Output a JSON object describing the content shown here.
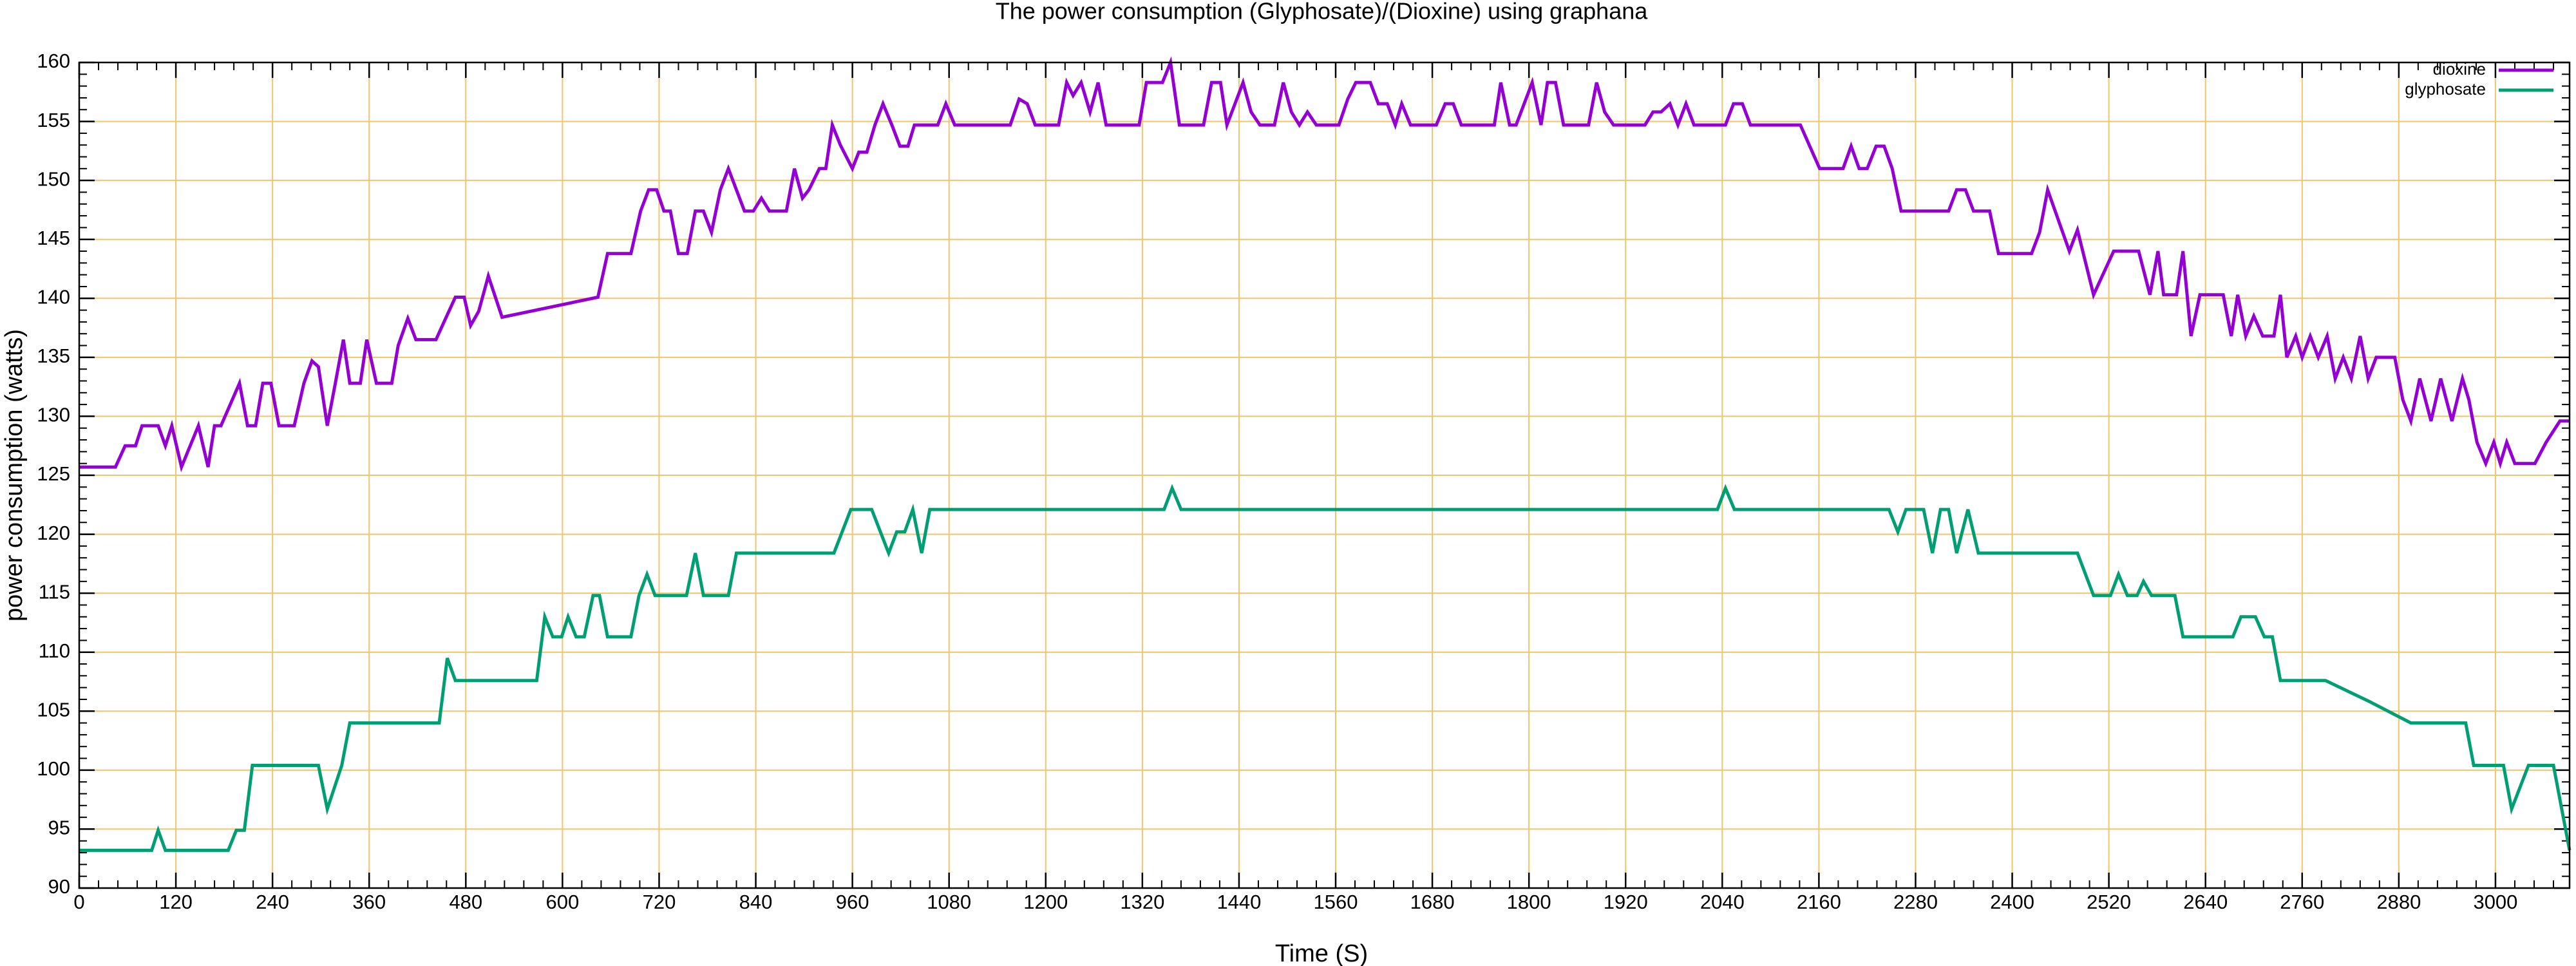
{
  "chart_data": {
    "type": "line",
    "title": "The power consumption (Glyphosate)/(Dioxine) using graphana",
    "x_label": "Time (S)",
    "y_label": "power consumption (watts)",
    "xlim": [
      0,
      3092
    ],
    "ylim": [
      90,
      160
    ],
    "xticks": [
      0,
      120,
      240,
      360,
      480,
      600,
      720,
      840,
      960,
      1080,
      1200,
      1320,
      1440,
      1560,
      1680,
      1800,
      1920,
      2040,
      2160,
      2280,
      2400,
      2520,
      2640,
      2760,
      2880,
      3000
    ],
    "yticks": [
      90,
      95,
      100,
      105,
      110,
      115,
      120,
      125,
      130,
      135,
      140,
      145,
      150,
      155,
      160
    ],
    "minor_ticks": 5,
    "grid": true,
    "grid_color": "#f3c46e",
    "legend": "top-right",
    "series": [
      {
        "name": "dioxine",
        "color": "#9400d3",
        "x": [
          0,
          45,
          57,
          70,
          78,
          98,
          107,
          115,
          127,
          148,
          160,
          168,
          176,
          199,
          209,
          219,
          228,
          238,
          248,
          267,
          279,
          289,
          297,
          308,
          318,
          328,
          336,
          349,
          357,
          369,
          388,
          396,
          408,
          418,
          443,
          455,
          467,
          478,
          486,
          496,
          508,
          525,
          644,
          656,
          685,
          697,
          707,
          717,
          726,
          734,
          744,
          755,
          765,
          775,
          785,
          796,
          806,
          816,
          826,
          837,
          847,
          857,
          878,
          888,
          898,
          906,
          919,
          927,
          935,
          945,
          960,
          968,
          978,
          988,
          998,
          1009,
          1019,
          1029,
          1037,
          1066,
          1076,
          1087,
          1156,
          1167,
          1177,
          1187,
          1216,
          1226,
          1234,
          1244,
          1255,
          1265,
          1275,
          1316,
          1325,
          1345,
          1355,
          1366,
          1396,
          1406,
          1417,
          1425,
          1445,
          1455,
          1466,
          1484,
          1495,
          1505,
          1515,
          1525,
          1536,
          1564,
          1575,
          1585,
          1603,
          1613,
          1624,
          1634,
          1642,
          1653,
          1685,
          1696,
          1706,
          1716,
          1757,
          1765,
          1776,
          1784,
          1794,
          1804,
          1815,
          1823,
          1833,
          1843,
          1874,
          1884,
          1894,
          1905,
          1944,
          1954,
          1964,
          1975,
          1985,
          1995,
          2005,
          2044,
          2054,
          2065,
          2075,
          2137,
          2161,
          2190,
          2200,
          2210,
          2220,
          2231,
          2241,
          2251,
          2262,
          2321,
          2331,
          2342,
          2352,
          2372,
          2383,
          2424,
          2434,
          2444,
          2471,
          2481,
          2501,
          2526,
          2557,
          2571,
          2581,
          2588,
          2604,
          2612,
          2622,
          2633,
          2662,
          2672,
          2680,
          2690,
          2700,
          2711,
          2725,
          2733,
          2741,
          2752,
          2760,
          2770,
          2780,
          2791,
          2801,
          2811,
          2821,
          2832,
          2842,
          2852,
          2875,
          2885,
          2895,
          2906,
          2920,
          2932,
          2946,
          2959,
          2967,
          2977,
          2988,
          2998,
          3006,
          3014,
          3024,
          3049,
          3063,
          3080,
          3092
        ],
        "values": [
          125.7,
          125.7,
          127.5,
          127.5,
          129.2,
          129.2,
          127.5,
          129.2,
          125.7,
          129.2,
          125.7,
          129.2,
          129.2,
          132.8,
          129.2,
          129.2,
          132.8,
          132.8,
          129.2,
          129.2,
          132.8,
          134.7,
          134.2,
          129.2,
          132.8,
          136.5,
          132.8,
          132.8,
          136.5,
          132.8,
          132.8,
          136,
          138.3,
          136.5,
          136.5,
          138.3,
          140.1,
          140.1,
          137.7,
          138.9,
          141.9,
          138.4,
          140.1,
          143.8,
          143.8,
          147.4,
          149.2,
          149.2,
          147.4,
          147.4,
          143.8,
          143.8,
          147.4,
          147.4,
          145.6,
          149.2,
          151,
          149.2,
          147.4,
          147.4,
          148.5,
          147.4,
          147.4,
          151,
          148.5,
          149.2,
          151,
          151,
          154.7,
          153,
          151,
          152.4,
          152.4,
          154.7,
          156.5,
          154.7,
          152.9,
          152.9,
          154.7,
          154.7,
          156.5,
          154.7,
          154.7,
          156.9,
          156.5,
          154.7,
          154.7,
          158.3,
          157.2,
          158.3,
          155.8,
          158.3,
          154.7,
          154.7,
          158.3,
          158.3,
          160,
          154.7,
          154.7,
          158.3,
          158.3,
          154.7,
          158.3,
          155.8,
          154.7,
          154.7,
          158.3,
          155.8,
          154.7,
          155.8,
          154.7,
          154.7,
          156.9,
          158.3,
          158.3,
          156.5,
          156.5,
          154.7,
          156.5,
          154.7,
          154.7,
          156.5,
          156.5,
          154.7,
          154.7,
          158.3,
          154.7,
          154.7,
          156.5,
          158.3,
          154.7,
          158.3,
          158.3,
          154.7,
          154.7,
          158.3,
          155.8,
          154.7,
          154.7,
          155.8,
          155.8,
          156.5,
          154.7,
          156.5,
          154.7,
          154.7,
          156.5,
          156.5,
          154.7,
          154.7,
          151,
          151,
          152.9,
          151,
          151,
          152.9,
          152.9,
          151,
          147.4,
          147.4,
          149.2,
          149.2,
          147.4,
          147.4,
          143.8,
          143.8,
          145.6,
          149.2,
          144,
          145.8,
          140.3,
          144,
          144,
          140.3,
          144,
          140.3,
          140.3,
          144,
          136.8,
          140.3,
          140.3,
          136.8,
          140.3,
          136.8,
          138.5,
          136.8,
          136.8,
          140.3,
          135,
          136.8,
          135,
          136.8,
          135,
          136.8,
          133.2,
          135,
          133.2,
          136.8,
          133.2,
          135,
          135,
          131.4,
          129.6,
          133.2,
          129.6,
          133.2,
          129.6,
          133.2,
          131.4,
          127.8,
          126,
          127.8,
          126,
          127.8,
          126,
          126,
          127.8,
          129.6,
          129.6
        ]
      },
      {
        "name": "glyphosate",
        "color": "#009e73",
        "x": [
          0,
          90,
          98,
          107,
          185,
          195,
          205,
          215,
          297,
          308,
          326,
          336,
          447,
          457,
          467,
          568,
          578,
          588,
          599,
          607,
          617,
          627,
          638,
          646,
          656,
          685,
          695,
          705,
          715,
          754,
          765,
          775,
          806,
          816,
          937,
          958,
          984,
          1005,
          1015,
          1025,
          1035,
          1046,
          1056,
          1347,
          1357,
          1368,
          2034,
          2044,
          2055,
          2247,
          2258,
          2268,
          2290,
          2301,
          2311,
          2321,
          2331,
          2345,
          2358,
          2481,
          2501,
          2522,
          2532,
          2543,
          2555,
          2563,
          2573,
          2602,
          2612,
          2674,
          2684,
          2702,
          2713,
          2723,
          2733,
          2789,
          2844,
          2895,
          2963,
          2973,
          3010,
          3020,
          3041,
          3072,
          3092
        ],
        "values": [
          93.2,
          93.2,
          94.9,
          93.2,
          93.2,
          94.9,
          94.9,
          100.4,
          100.4,
          96.7,
          100.4,
          104,
          104,
          109.5,
          107.6,
          107.6,
          113,
          111.3,
          111.3,
          113,
          111.3,
          111.3,
          114.8,
          114.8,
          111.3,
          111.3,
          114.8,
          116.6,
          114.8,
          114.8,
          118.4,
          114.8,
          114.8,
          118.4,
          118.4,
          122.1,
          122.1,
          118.4,
          120.2,
          120.2,
          122.1,
          118.4,
          122.1,
          122.1,
          123.9,
          122.1,
          122.1,
          123.9,
          122.1,
          122.1,
          120.2,
          122.1,
          122.1,
          118.4,
          122.1,
          122.1,
          118.4,
          122.1,
          118.4,
          118.4,
          114.8,
          114.8,
          116.6,
          114.8,
          114.8,
          116,
          114.8,
          114.8,
          111.3,
          111.3,
          113,
          113,
          111.3,
          111.3,
          107.6,
          107.6,
          105.8,
          104,
          104,
          100.4,
          100.4,
          96.7,
          100.4,
          100.4,
          93.2
        ]
      }
    ]
  }
}
